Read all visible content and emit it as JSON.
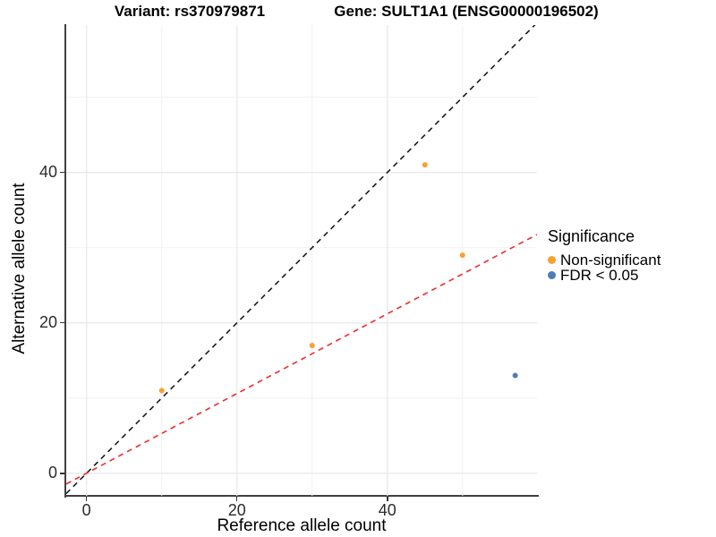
{
  "titles": {
    "left": "Variant: rs370979871",
    "right": "Gene: SULT1A1 (ENSG00000196502)"
  },
  "chart_data": {
    "type": "scatter",
    "title": "Variant: rs370979871   Gene: SULT1A1 (ENSG00000196502)",
    "xlabel": "Reference allele count",
    "ylabel": "Alternative allele count",
    "xlim": [
      -2.7,
      59.9
    ],
    "ylim": [
      -3.0,
      59.6
    ],
    "x_ticks": [
      0,
      20,
      40
    ],
    "y_ticks": [
      0,
      20,
      40
    ],
    "x_minor_ticks": [
      10,
      30,
      50
    ],
    "y_minor_ticks": [
      10,
      30,
      50
    ],
    "grid": true,
    "background": "#ffffff",
    "grid_major_color": "#e9e9e9",
    "grid_minor_color": "#f1f1f1",
    "series": [
      {
        "name": "Non-significant",
        "color": "#F9A02E",
        "points": [
          [
            10,
            11
          ],
          [
            30,
            17
          ],
          [
            45,
            41
          ],
          [
            50,
            29
          ]
        ]
      },
      {
        "name": "FDR < 0.05",
        "color": "#4D7DB8",
        "points": [
          [
            57,
            13
          ]
        ]
      }
    ],
    "ref_lines": [
      {
        "name": "identity-line",
        "color": "#1a1a1a",
        "dashed": true,
        "slope": 1,
        "intercept": 0
      },
      {
        "name": "fit-line",
        "color": "#ee2c2c",
        "dashed": true,
        "slope": 0.53,
        "intercept": 0
      }
    ],
    "legend": {
      "title": "Significance",
      "position": "right",
      "items": [
        {
          "label": "Non-significant",
          "color": "#F9A02E"
        },
        {
          "label": "FDR < 0.05",
          "color": "#4D7DB8"
        }
      ]
    }
  }
}
